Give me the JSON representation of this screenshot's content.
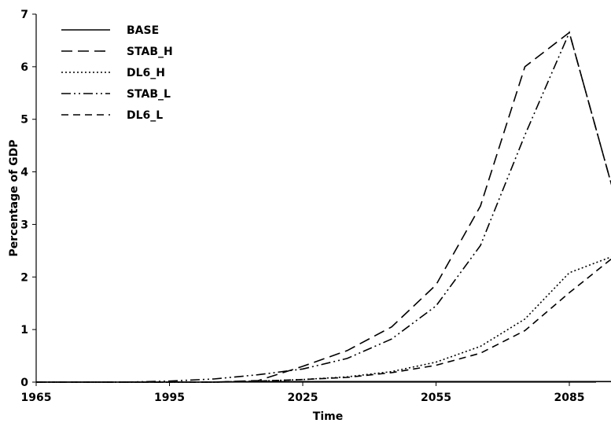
{
  "chart_data": {
    "type": "line",
    "xlabel": "Time",
    "ylabel": "Percentage of GDP",
    "xlim": [
      1965,
      2100
    ],
    "ylim": [
      0,
      7
    ],
    "x_ticks": [
      1965,
      1995,
      2025,
      2055,
      2085
    ],
    "y_ticks": [
      0,
      1,
      2,
      3,
      4,
      5,
      6,
      7
    ],
    "grid": false,
    "legend_position": "top-left",
    "x": [
      1965,
      1975,
      1985,
      1995,
      2005,
      2015,
      2025,
      2035,
      2045,
      2055,
      2065,
      2075,
      2085,
      2095
    ],
    "series": [
      {
        "name": "BASE",
        "dash": "solid",
        "values": [
          0,
          0,
          0,
          0,
          0,
          0.01,
          0.01,
          0.01,
          0.01,
          0.01,
          0.01,
          0.01,
          0.01,
          0.01
        ]
      },
      {
        "name": "STAB_H",
        "dash": "long-dash",
        "values": [
          0,
          0,
          0,
          0,
          0,
          0.03,
          0.3,
          0.6,
          1.05,
          1.85,
          3.35,
          6.0,
          6.65,
          3.6
        ]
      },
      {
        "name": "DL6_H",
        "dash": "dotted",
        "values": [
          0,
          0,
          0,
          0,
          0,
          0.02,
          0.05,
          0.1,
          0.2,
          0.38,
          0.68,
          1.2,
          2.08,
          2.4
        ]
      },
      {
        "name": "STAB_L",
        "dash": "dash-dot-dot",
        "values": [
          0,
          0,
          0,
          0.02,
          0.06,
          0.14,
          0.25,
          0.45,
          0.82,
          1.45,
          2.6,
          4.7,
          6.65,
          3.6
        ]
      },
      {
        "name": "DL6_L",
        "dash": "short-dash",
        "values": [
          0,
          0,
          0,
          0,
          0,
          0.02,
          0.05,
          0.09,
          0.18,
          0.32,
          0.55,
          0.98,
          1.7,
          2.38
        ]
      }
    ]
  }
}
